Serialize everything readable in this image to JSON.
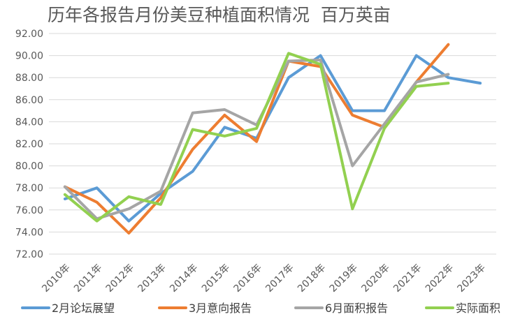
{
  "chart_data": {
    "type": "line",
    "title": "历年各报告月份美豆种植面积情况  百万英亩",
    "categories": [
      "2010年",
      "2011年",
      "2012年",
      "2013年",
      "2014年",
      "2015年",
      "2016年",
      "2017年",
      "2018年",
      "2019年",
      "2020年",
      "2021年",
      "2022年",
      "2023年"
    ],
    "yticks": [
      "72.00",
      "74.00",
      "76.00",
      "78.00",
      "80.00",
      "82.00",
      "84.00",
      "86.00",
      "88.00",
      "90.00",
      "92.00"
    ],
    "ylim": [
      72,
      92
    ],
    "grid": true,
    "legend_position": "bottom",
    "series": [
      {
        "name": "2月论坛展望",
        "color": "#5B9BD5",
        "values": [
          77.0,
          78.0,
          75.0,
          77.5,
          79.5,
          83.5,
          82.5,
          88.0,
          90.0,
          85.0,
          85.0,
          90.0,
          88.0,
          87.5
        ]
      },
      {
        "name": "3月意向报告",
        "color": "#ED7D31",
        "values": [
          78.1,
          76.7,
          73.9,
          77.1,
          81.5,
          84.6,
          82.2,
          89.5,
          89.0,
          84.6,
          83.5,
          87.6,
          91.0,
          null
        ]
      },
      {
        "name": "6月面积报告",
        "color": "#A5A5A5",
        "values": [
          78.1,
          75.2,
          76.1,
          77.7,
          84.8,
          85.1,
          83.7,
          89.5,
          89.6,
          80.0,
          83.8,
          87.6,
          88.3,
          null
        ]
      },
      {
        "name": "实际面积",
        "color": "#92D050",
        "values": [
          77.4,
          75.0,
          77.2,
          76.5,
          83.3,
          82.7,
          83.4,
          90.2,
          89.2,
          76.1,
          83.4,
          87.2,
          87.5,
          null
        ]
      }
    ]
  }
}
